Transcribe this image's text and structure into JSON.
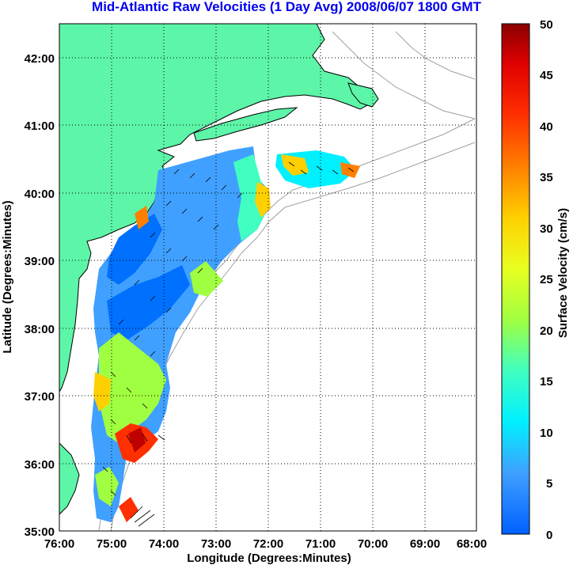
{
  "title": "Mid-Atlantic Raw Velocities (1 Day Avg) 2008/06/07 1800 GMT",
  "map": {
    "xlabel": "Longitude (Degrees:Minutes)",
    "ylabel": "Latitude (Degrees:Minutes)",
    "x_ticks": [
      "76:00",
      "75:00",
      "74:00",
      "73:00",
      "72:00",
      "71:00",
      "70:00",
      "69:00",
      "68:00"
    ],
    "y_ticks": [
      "42:00",
      "41:00",
      "40:00",
      "39:00",
      "38:00",
      "37:00",
      "36:00",
      "35:00"
    ],
    "lon_range": [
      -76,
      -68
    ],
    "lat_range": [
      35,
      42.5
    ],
    "grid": "dotted"
  },
  "colorbar": {
    "label": "Surface Velocity (cm/s)",
    "ticks": [
      "50",
      "45",
      "40",
      "35",
      "30",
      "25",
      "20",
      "15",
      "10",
      "5",
      "0"
    ],
    "range": [
      0,
      50
    ]
  },
  "colors": {
    "land": "#5df5a8",
    "coast": "#000000",
    "bathymetry": "#a0a0a0",
    "title": "#0000ee"
  }
}
